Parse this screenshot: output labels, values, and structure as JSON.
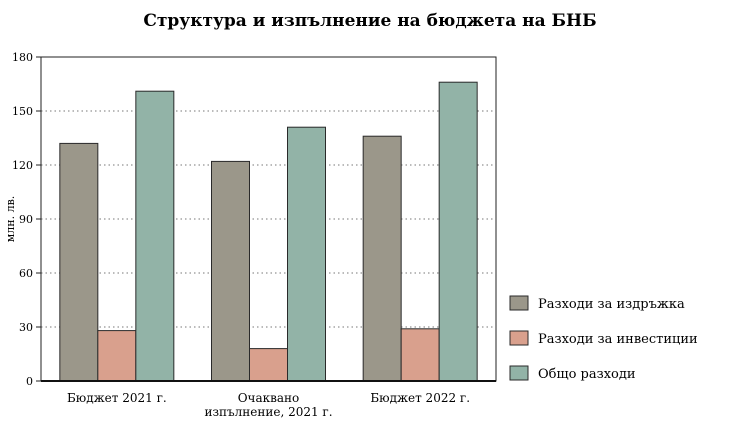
{
  "chart_data": {
    "type": "bar",
    "title": "Структура и изпълнение на бюджета на БНБ",
    "ylabel": "млн. лв.",
    "xlabel": "",
    "ylim": [
      0,
      180
    ],
    "yticks": [
      0,
      30,
      60,
      90,
      120,
      150,
      180
    ],
    "grid": true,
    "legend_position": "right",
    "categories": [
      [
        "Бюджет 2021 г."
      ],
      [
        "Очаквано",
        "изпълнение,  2021 г."
      ],
      [
        "Бюджет 2022 г."
      ]
    ],
    "series": [
      {
        "name": "Разходи за издръжка",
        "color": "#9b978a",
        "values": [
          132,
          122,
          136
        ]
      },
      {
        "name": "Разходи за инвестиции",
        "color": "#d9a08d",
        "values": [
          28,
          18,
          29
        ]
      },
      {
        "name": "Общо разходи",
        "color": "#92b3a7",
        "values": [
          161,
          141,
          166
        ]
      }
    ]
  }
}
